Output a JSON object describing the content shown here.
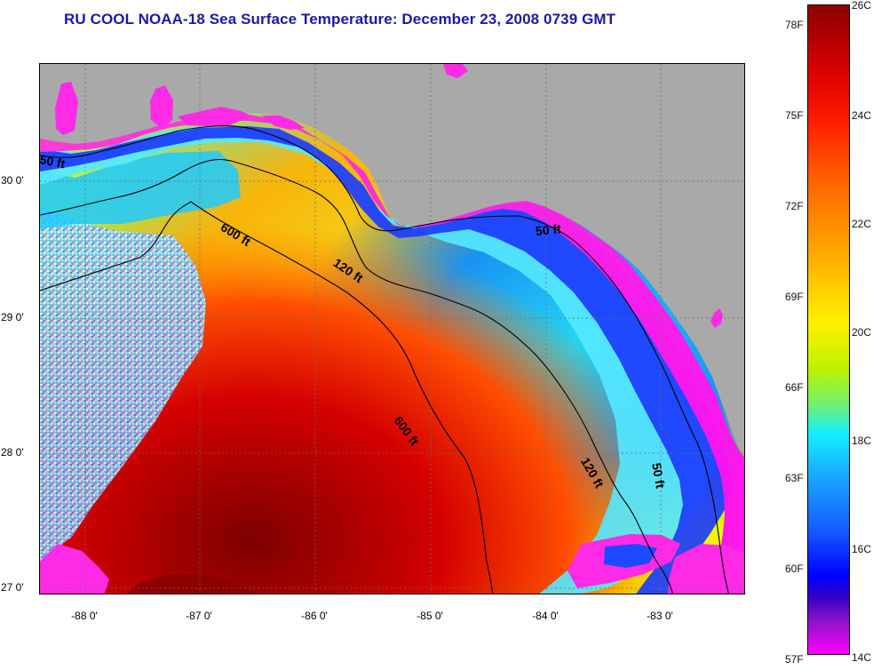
{
  "title": "RU COOL  NOAA-18  Sea Surface Temperature:  December 23, 2008 0739 GMT",
  "map": {
    "latitude_labels": [
      "30 0'",
      "29 0'",
      "28 0'",
      "27 0'"
    ],
    "longitude_labels": [
      "-88 0'",
      "-87 0'",
      "-86 0'",
      "-85 0'",
      "-84 0'",
      "-83 0'"
    ],
    "isobath_labels": [
      "50 ft",
      "600 ft",
      "120 ft",
      "50 ft",
      "600 ft",
      "120 ft",
      "50 ft"
    ],
    "land_color": "#a9a9a9",
    "warm_core_color": "#d71a1a",
    "shelf_cool_color": "#1a34ff"
  },
  "colorbar": {
    "f_labels": [
      "78F",
      "75F",
      "72F",
      "69F",
      "66F",
      "63F",
      "60F",
      "57F"
    ],
    "c_labels": [
      "26C",
      "24C",
      "22C",
      "20C",
      "18C",
      "16C",
      "14C"
    ],
    "min_c": 14,
    "max_c": 26
  }
}
